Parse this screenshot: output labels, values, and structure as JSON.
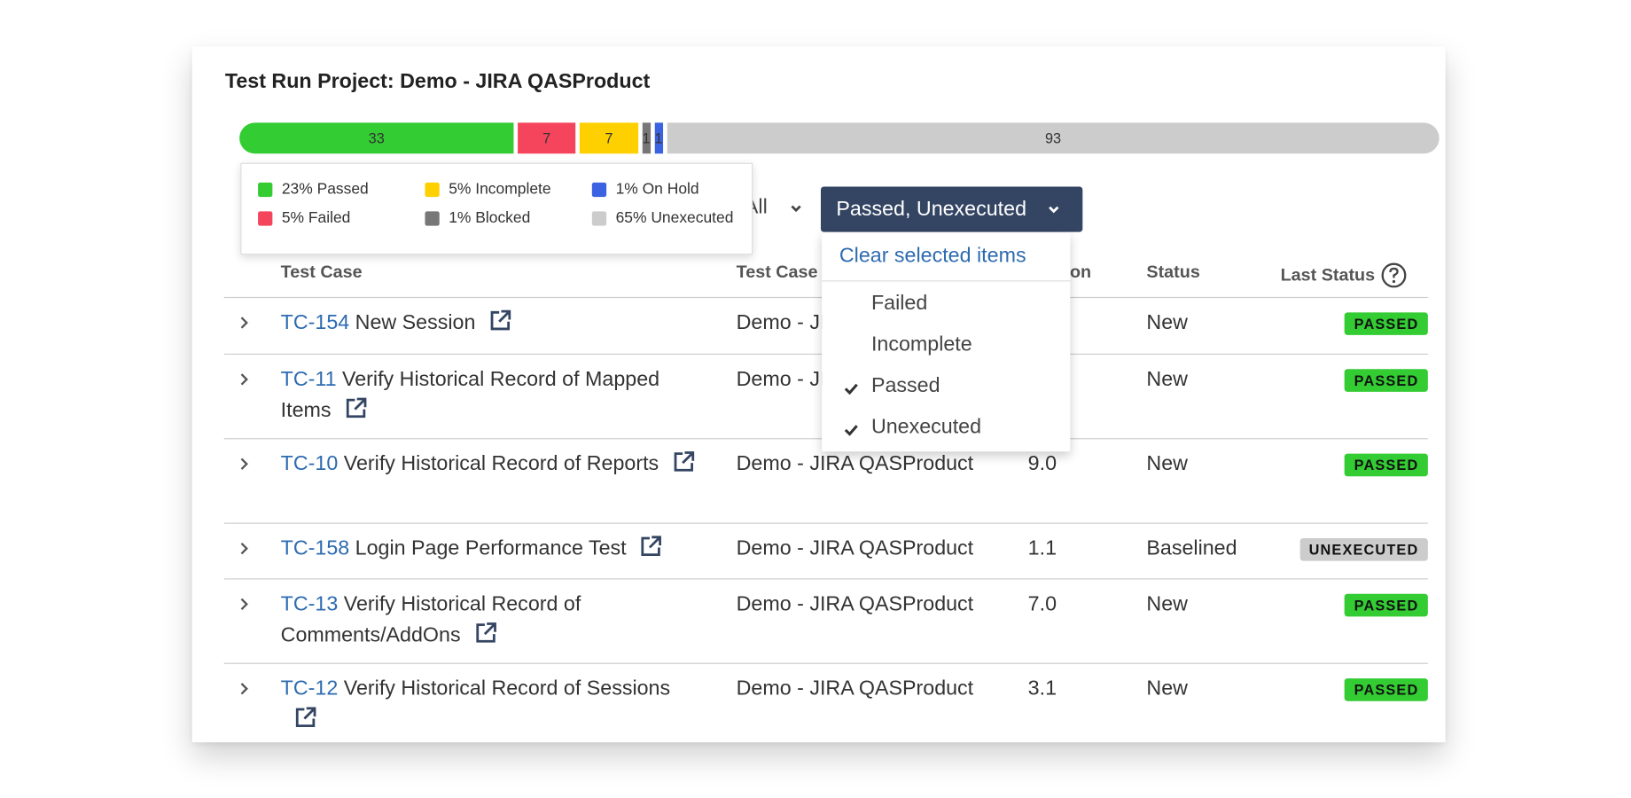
{
  "title": "Test Run Project: Demo - JIRA QASProduct",
  "progress": [
    {
      "value": 33,
      "color": "#33cc33"
    },
    {
      "value": 7,
      "color": "#f5455c"
    },
    {
      "value": 7,
      "color": "#ffd000"
    },
    {
      "value": 1,
      "color": "#777777"
    },
    {
      "value": 1,
      "color": "#3b62e0"
    },
    {
      "value": 93,
      "color": "#cccccc"
    }
  ],
  "legend": [
    {
      "text": "23% Passed",
      "color": "#33cc33"
    },
    {
      "text": "5% Failed",
      "color": "#f5455c"
    },
    {
      "text": "5% Incomplete",
      "color": "#ffd000"
    },
    {
      "text": "1% Blocked",
      "color": "#777777"
    },
    {
      "text": "1% On Hold",
      "color": "#3b62e0"
    },
    {
      "text": "65% Unexecuted",
      "color": "#cccccc"
    }
  ],
  "filter": {
    "scope": "All",
    "selected": "Passed, Unexecuted",
    "clear": "Clear selected items",
    "options": [
      {
        "text": "Failed",
        "checked": false
      },
      {
        "text": "Incomplete",
        "checked": false
      },
      {
        "text": "Passed",
        "checked": true
      },
      {
        "text": "Unexecuted",
        "checked": true
      }
    ]
  },
  "table": {
    "headers": [
      "Test Case",
      "Test Case",
      "Version",
      "Status",
      "Last Status"
    ],
    "rows": [
      {
        "id": "TC-154",
        "name": "New Session",
        "project": "Demo - JIRA QASProduct",
        "status": "New",
        "last_status": "PASSED",
        "color": "#33cc33"
      },
      {
        "id": "TC-11",
        "name": "Verify Historical Record of Mapped Items",
        "project": "Demo - JIRA QASProduct",
        "status": "New",
        "last_status": "PASSED",
        "color": "#33cc33"
      },
      {
        "id": "TC-10",
        "name": "Verify Historical Record of Reports",
        "project": "Demo - JIRA QASProduct",
        "version": "9.0",
        "status": "New",
        "last_status": "PASSED",
        "color": "#33cc33"
      },
      {
        "id": "TC-158",
        "name": "Login Page Performance Test",
        "project": "Demo - JIRA QASProduct",
        "version": "1.1",
        "status": "Baselined",
        "last_status": "UNEXECUTED",
        "color": "#cccccc"
      },
      {
        "id": "TC-13",
        "name": "Verify Historical Record of Comments/AddOns",
        "project": "Demo - JIRA QASProduct",
        "version": "7.0",
        "status": "New",
        "last_status": "PASSED",
        "color": "#33cc33"
      },
      {
        "id": "TC-12",
        "name": "Verify Historical Record of Sessions",
        "project": "Demo - JIRA QASProduct",
        "version": "3.1",
        "status": "New",
        "last_status": "PASSED",
        "color": "#33cc33"
      }
    ]
  }
}
